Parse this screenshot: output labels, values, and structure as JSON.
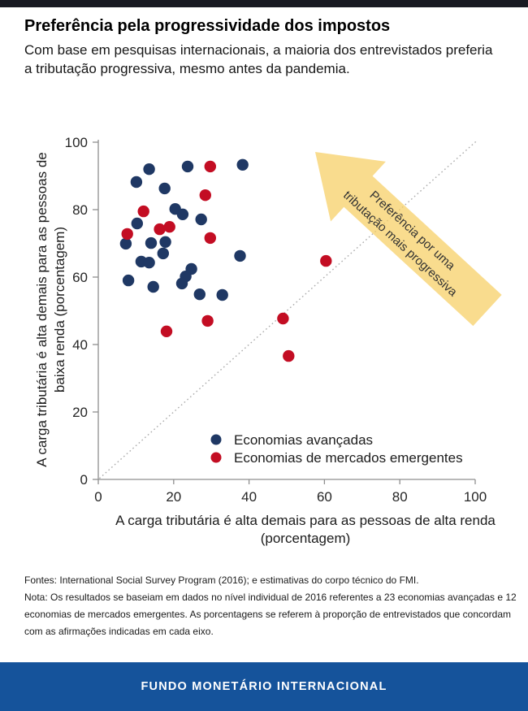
{
  "header": {
    "title": "Preferência pela progressividade dos impostos",
    "subtitle": "Com base em pesquisas internacionais, a maioria dos entrevistados preferia a tributação progressiva, mesmo antes da pandemia."
  },
  "footnotes": {
    "sources": "Fontes: International Social Survey Program (2016); e estimativas do corpo técnico do FMI.",
    "note": "Nota: Os resultados se baseiam em dados no nível individual de 2016 referentes a 23 economias avançadas e 12 economias de mercados emergentes. As porcentagens se referem à proporção de entrevistados que concordam com as afirmações indicadas em cada eixo."
  },
  "brand_bar": {
    "label": "FUNDO MONETÁRIO INTERNACIONAL",
    "background": "#15539B"
  },
  "chart_data": {
    "type": "scatter",
    "title": "",
    "xlabel_line1": "A carga tributária é alta demais para as pessoas de alta renda",
    "xlabel_line2": "(porcentagem)",
    "ylabel_line1": "A carga tributária é alta demais para as pessoas de",
    "ylabel_line2": "baixa renda (porcentagem)",
    "xlim": [
      0,
      100
    ],
    "ylim": [
      0,
      100
    ],
    "xticks": [
      0,
      20,
      40,
      60,
      80,
      100
    ],
    "yticks": [
      0,
      20,
      40,
      60,
      80,
      100
    ],
    "grid": false,
    "legend_position": "inside lower-center",
    "reference_line": {
      "kind": "dotted diagonal y = x",
      "color": "#ababab"
    },
    "annotation": {
      "shape": "large yellow arrow pointing up-left",
      "color": "#F7CE63",
      "text_line1": "Preferência por uma",
      "text_line2": "tributação mais progressiva"
    },
    "series": [
      {
        "name": "Economias avançadas",
        "color": "#1F3864",
        "points": [
          [
            13.5,
            92.0
          ],
          [
            10.1,
            88.2
          ],
          [
            23.7,
            92.8
          ],
          [
            38.3,
            93.3
          ],
          [
            17.6,
            86.3
          ],
          [
            20.4,
            80.2
          ],
          [
            22.4,
            78.6
          ],
          [
            10.3,
            75.9
          ],
          [
            27.3,
            77.1
          ],
          [
            7.3,
            69.9
          ],
          [
            14.0,
            70.1
          ],
          [
            17.8,
            70.4
          ],
          [
            17.2,
            67.0
          ],
          [
            11.4,
            64.6
          ],
          [
            13.5,
            64.3
          ],
          [
            37.6,
            66.3
          ],
          [
            24.7,
            62.4
          ],
          [
            23.2,
            60.2
          ],
          [
            22.2,
            58.1
          ],
          [
            8.0,
            59.0
          ],
          [
            14.6,
            57.1
          ],
          [
            26.9,
            54.9
          ],
          [
            32.9,
            54.7
          ]
        ]
      },
      {
        "name": "Economias de mercados emergentes",
        "color": "#C30D23",
        "points": [
          [
            29.7,
            92.8
          ],
          [
            28.4,
            84.3
          ],
          [
            12.0,
            79.5
          ],
          [
            16.3,
            74.2
          ],
          [
            18.9,
            74.9
          ],
          [
            7.7,
            72.8
          ],
          [
            29.7,
            71.6
          ],
          [
            60.4,
            64.8
          ],
          [
            49.0,
            47.7
          ],
          [
            50.5,
            36.6
          ],
          [
            29.0,
            47.0
          ],
          [
            18.1,
            43.9
          ]
        ]
      }
    ]
  }
}
